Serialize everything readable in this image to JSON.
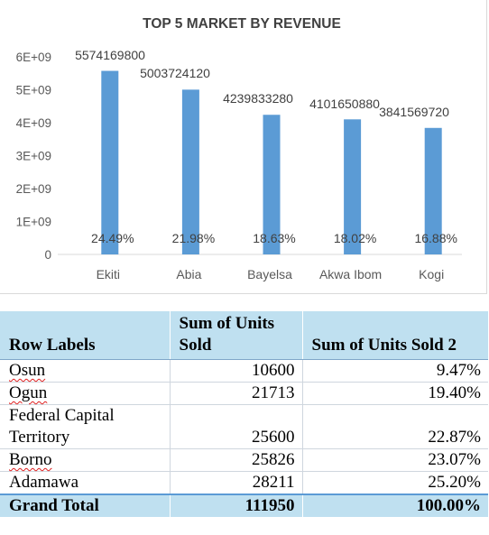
{
  "chart_data": {
    "type": "bar",
    "title": "TOP 5 MARKET BY REVENUE",
    "categories": [
      "Ekiti",
      "Abia",
      "Bayelsa",
      "Akwa Ibom",
      "Kogi"
    ],
    "values": [
      5574169800,
      5003724120,
      4239833280,
      4101650880,
      3841569720
    ],
    "value_labels": [
      "5574169800",
      "5003724120",
      "4239833280",
      "4101650880",
      "3841569720"
    ],
    "percent_labels": [
      "24.49%",
      "21.98%",
      "18.63%",
      "18.02%",
      "16.88%"
    ],
    "yticks": [
      "0",
      "1E+09",
      "2E+09",
      "3E+09",
      "4E+09",
      "5E+09",
      "6E+09"
    ],
    "ylim": [
      0,
      6000000000
    ],
    "grid": false,
    "bar_color": "#5b9bd5"
  },
  "table": {
    "headers": [
      "Row Labels",
      "Sum of Units Sold",
      "Sum of Units Sold 2"
    ],
    "rows": [
      {
        "label": "Osun",
        "units": "10600",
        "pct": "9.47%"
      },
      {
        "label": "Ogun",
        "units": "21713",
        "pct": "19.40%"
      },
      {
        "label": "Federal Capital Territory",
        "units": "25600",
        "pct": "22.87%"
      },
      {
        "label": "Borno",
        "units": "25826",
        "pct": "23.07%"
      },
      {
        "label": "Adamawa",
        "units": "28211",
        "pct": "25.20%"
      }
    ],
    "total": {
      "label": "Grand Total",
      "units": "111950",
      "pct": "100.00%"
    },
    "header_color": "#bfe0f0"
  }
}
